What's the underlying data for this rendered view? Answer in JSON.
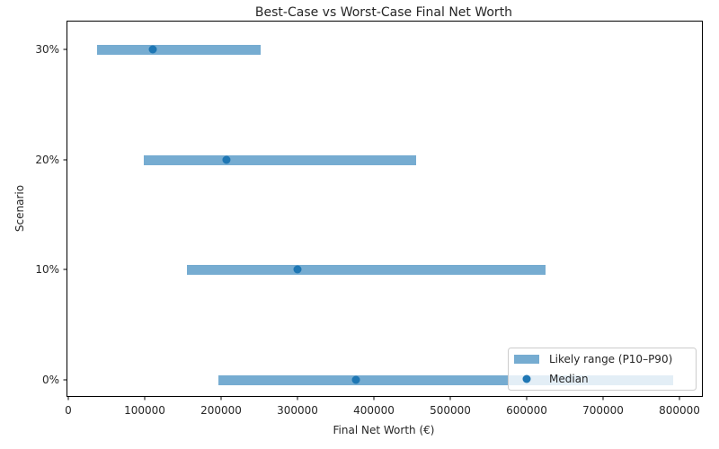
{
  "chart_data": {
    "type": "range-bar",
    "title": "Best-Case vs Worst-Case Final Net Worth",
    "xlabel": "Final Net Worth (€)",
    "ylabel": "Scenario",
    "xlim": [
      0,
      830000
    ],
    "x_ticks": [
      0,
      100000,
      200000,
      300000,
      400000,
      500000,
      600000,
      700000,
      800000
    ],
    "x_tick_labels": [
      "0",
      "100000",
      "200000",
      "300000",
      "400000",
      "500000",
      "600000",
      "700000",
      "800000"
    ],
    "categories": [
      "0%",
      "10%",
      "20%",
      "30%"
    ],
    "series": [
      {
        "name": "Likely range (P10–P90)",
        "type": "hbar-range",
        "color": "#76acd1",
        "low": [
          196500,
          155300,
          98800,
          37600
        ],
        "high": [
          791800,
          624700,
          455300,
          251800
        ]
      },
      {
        "name": "Median",
        "type": "scatter",
        "color": "#1f77b4",
        "values": [
          376500,
          300000,
          207000,
          110600
        ]
      }
    ],
    "grid": false,
    "legend_position": "lower right"
  },
  "legend": {
    "items": [
      {
        "label": "Likely range (P10–P90)",
        "kind": "patch",
        "color": "#76acd1"
      },
      {
        "label": "Median",
        "kind": "marker",
        "color": "#1f77b4"
      }
    ]
  }
}
